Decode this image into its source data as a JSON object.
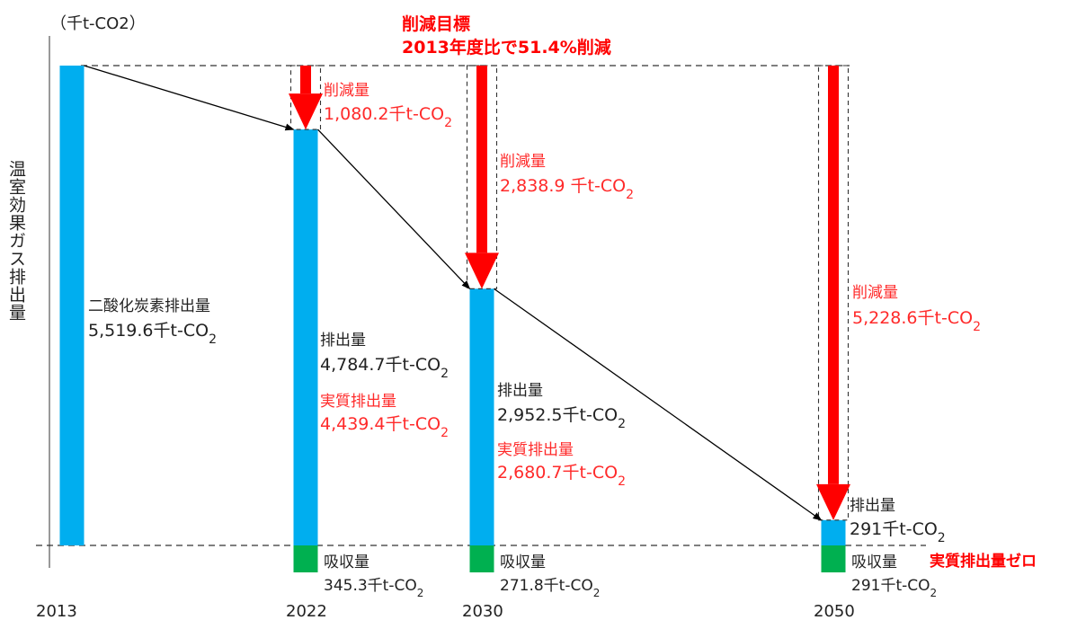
{
  "chart_data": {
    "type": "bar",
    "unit_label": "（千t-CO2）",
    "ylabel": "温室効果ガス排出量",
    "target": {
      "line1": "削減目標",
      "line2": "2013年度比で51.4%削減"
    },
    "net_zero_label": "実質排出量ゼロ",
    "categories": [
      "2013",
      "2022",
      "2030",
      "2050"
    ],
    "baseline": 5519.6,
    "series": [
      {
        "name": "排出量",
        "values": [
          5519.6,
          4784.7,
          2952.5,
          291
        ]
      },
      {
        "name": "吸収量",
        "values": [
          null,
          345.3,
          271.8,
          291
        ]
      }
    ],
    "bars": [
      {
        "year": "2013",
        "emission": 5519.6,
        "emission_label": "二酸化炭素排出量",
        "emission_value": "5,519.6千t-CO2"
      },
      {
        "year": "2022",
        "emission": 4784.7,
        "emission_label": "排出量",
        "emission_value": "4,784.7千t-CO2",
        "net_label": "実質排出量",
        "net_value": "4,439.4千t-CO2",
        "reduction": 1080.2,
        "reduction_label": "削減量",
        "reduction_value": "1,080.2千t-CO2",
        "absorption": 345.3,
        "absorption_label": "吸収量",
        "absorption_value": "345.3千t-CO2"
      },
      {
        "year": "2030",
        "emission": 2952.5,
        "emission_label": "排出量",
        "emission_value": "2,952.5千t-CO2",
        "net_label": "実質排出量",
        "net_value": "2,680.7千t-CO2",
        "reduction": 2838.9,
        "reduction_label": "削減量",
        "reduction_value": "2,838.9 千t-CO2",
        "absorption": 271.8,
        "absorption_label": "吸収量",
        "absorption_value": "271.8千t-CO2"
      },
      {
        "year": "2050",
        "emission": 291,
        "emission_label": "排出量",
        "emission_value": "291千t-CO2",
        "reduction": 5228.6,
        "reduction_label": "削減量",
        "reduction_value": "5,228.6千t-CO2",
        "absorption": 291,
        "absorption_label": "吸収量",
        "absorption_value": "291千t-CO2"
      }
    ],
    "colors": {
      "emission": "#00aeef",
      "absorption": "#00b050",
      "reduction": "#ff0000",
      "text": "#222222",
      "highlight_text": "#ff2a2a"
    }
  }
}
